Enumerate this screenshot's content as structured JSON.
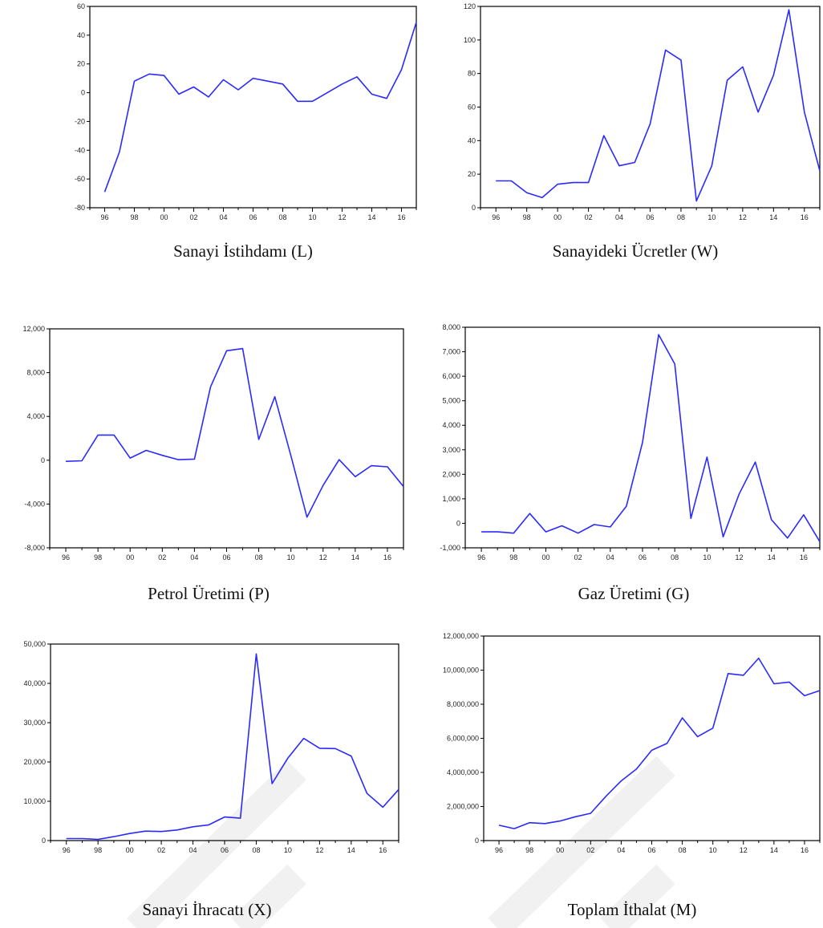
{
  "series_color": "#2a2aff",
  "x_tick_labels": [
    "96",
    "98",
    "00",
    "02",
    "04",
    "06",
    "08",
    "10",
    "12",
    "14",
    "16"
  ],
  "chart_data": [
    {
      "type": "line",
      "caption": "Sanayi İstihdamı (L)",
      "x": [
        1996,
        1997,
        1998,
        1999,
        2000,
        2001,
        2002,
        2003,
        2004,
        2005,
        2006,
        2007,
        2008,
        2009,
        2010,
        2011,
        2012,
        2013,
        2014,
        2015,
        2016,
        2017
      ],
      "values": [
        -69,
        -41,
        8,
        13,
        12,
        -1,
        4,
        -3,
        9,
        2,
        10,
        8,
        6,
        -6,
        -6,
        0,
        6,
        11,
        -1,
        -4,
        16,
        49
      ],
      "ylim": [
        -80,
        60
      ],
      "yticks": [
        -80,
        -60,
        -40,
        -20,
        0,
        20,
        40,
        60
      ],
      "ytick_labels": [
        "-80",
        "-60",
        "-40",
        "-20",
        "0",
        "20",
        "40",
        "60"
      ]
    },
    {
      "type": "line",
      "caption": "Sanayideki Ücretler (W)",
      "x": [
        1996,
        1997,
        1998,
        1999,
        2000,
        2001,
        2002,
        2003,
        2004,
        2005,
        2006,
        2007,
        2008,
        2009,
        2010,
        2011,
        2012,
        2013,
        2014,
        2015,
        2016,
        2017
      ],
      "values": [
        16,
        16,
        9,
        6,
        14,
        15,
        15,
        43,
        25,
        27,
        50,
        94,
        88,
        4,
        25,
        76,
        84,
        57,
        79,
        118,
        57,
        22
      ],
      "ylim": [
        0,
        120
      ],
      "yticks": [
        0,
        20,
        40,
        60,
        80,
        100,
        120
      ],
      "ytick_labels": [
        "0",
        "20",
        "40",
        "60",
        "80",
        "100",
        "120"
      ]
    },
    {
      "type": "line",
      "caption": "Petrol Üretimi (P)",
      "x": [
        1996,
        1997,
        1998,
        1999,
        2000,
        2001,
        2002,
        2003,
        2004,
        2005,
        2006,
        2007,
        2008,
        2009,
        2010,
        2011,
        2012,
        2013,
        2014,
        2015,
        2016,
        2017
      ],
      "values": [
        -100,
        -50,
        2300,
        2300,
        200,
        900,
        450,
        50,
        100,
        6700,
        10000,
        10200,
        1900,
        5800,
        400,
        -5200,
        -2300,
        50,
        -1500,
        -500,
        -600,
        -2400
      ],
      "ylim": [
        -8000,
        12000
      ],
      "yticks": [
        -8000,
        -4000,
        0,
        4000,
        8000,
        12000
      ],
      "ytick_labels": [
        "-8,000",
        "-4,000",
        "0",
        "4,000",
        "8,000",
        "12,000"
      ]
    },
    {
      "type": "line",
      "caption": "Gaz Üretimi (G)",
      "x": [
        1996,
        1997,
        1998,
        1999,
        2000,
        2001,
        2002,
        2003,
        2004,
        2005,
        2006,
        2007,
        2008,
        2009,
        2010,
        2011,
        2012,
        2013,
        2014,
        2015,
        2016,
        2017
      ],
      "values": [
        -350,
        -350,
        -400,
        400,
        -350,
        -100,
        -400,
        -50,
        -150,
        700,
        3300,
        7700,
        6500,
        200,
        2700,
        -550,
        1200,
        2500,
        150,
        -600,
        350,
        -750
      ],
      "ylim": [
        -1000,
        8000
      ],
      "yticks": [
        -1000,
        0,
        1000,
        2000,
        3000,
        4000,
        5000,
        6000,
        7000,
        8000
      ],
      "ytick_labels": [
        "-1,000",
        "0",
        "1,000",
        "2,000",
        "3,000",
        "4,000",
        "5,000",
        "6,000",
        "7,000",
        "8,000"
      ]
    },
    {
      "type": "line",
      "caption": "Sanayi İhracatı (X)",
      "x": [
        1996,
        1997,
        1998,
        1999,
        2000,
        2001,
        2002,
        2003,
        2004,
        2005,
        2006,
        2007,
        2008,
        2009,
        2010,
        2011,
        2012,
        2013,
        2014,
        2015,
        2016,
        2017
      ],
      "values": [
        500,
        500,
        300,
        1000,
        1800,
        2400,
        2300,
        2700,
        3500,
        4000,
        6000,
        5700,
        47500,
        14500,
        21000,
        26000,
        23500,
        23400,
        21500,
        12000,
        8500,
        13000
      ],
      "ylim": [
        0,
        50000
      ],
      "yticks": [
        0,
        10000,
        20000,
        30000,
        40000,
        50000
      ],
      "ytick_labels": [
        "0",
        "10,000",
        "20,000",
        "30,000",
        "40,000",
        "50,000"
      ]
    },
    {
      "type": "line",
      "caption": "Toplam İthalat (M)",
      "x": [
        1996,
        1997,
        1998,
        1999,
        2000,
        2001,
        2002,
        2003,
        2004,
        2005,
        2006,
        2007,
        2008,
        2009,
        2010,
        2011,
        2012,
        2013,
        2014,
        2015,
        2016,
        2017
      ],
      "values": [
        900000,
        700000,
        1050000,
        1000000,
        1150000,
        1400000,
        1600000,
        2600000,
        3500000,
        4200000,
        5300000,
        5700000,
        7200000,
        6100000,
        6600000,
        9800000,
        9700000,
        10700000,
        9200000,
        9300000,
        8500000,
        8800000
      ],
      "ylim": [
        0,
        12000000
      ],
      "yticks": [
        0,
        2000000,
        4000000,
        6000000,
        8000000,
        10000000,
        12000000
      ],
      "ytick_labels": [
        "0",
        "2,000,000",
        "4,000,000",
        "6,000,000",
        "8,000,000",
        "10,000,000",
        "12,000,000"
      ]
    }
  ]
}
